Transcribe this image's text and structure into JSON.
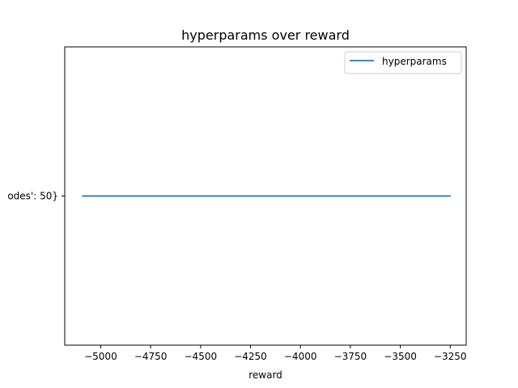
{
  "chart_data": {
    "type": "line",
    "title": "hyperparams over reward",
    "xlabel": "reward",
    "ylabel": "",
    "xlim": [
      -5180,
      -3170
    ],
    "x_ticks": [
      -5000,
      -4750,
      -4500,
      -4250,
      -4000,
      -3750,
      -3500,
      -3250
    ],
    "x_tick_labels": [
      "−5000",
      "−4750",
      "−4500",
      "−4250",
      "−4000",
      "−3750",
      "−3500",
      "−3250"
    ],
    "y_tick_labels": [
      "odes': 50}"
    ],
    "legend_position": "top-right",
    "grid": false,
    "series": [
      {
        "name": "hyperparams",
        "color": "#1f77b4",
        "y_category": "odes': 50}",
        "x": [
          -5090,
          -3500,
          -4900,
          -3800,
          -5060,
          -4200,
          -3250,
          -4600,
          -5000,
          -4000,
          -3300
        ]
      }
    ]
  }
}
